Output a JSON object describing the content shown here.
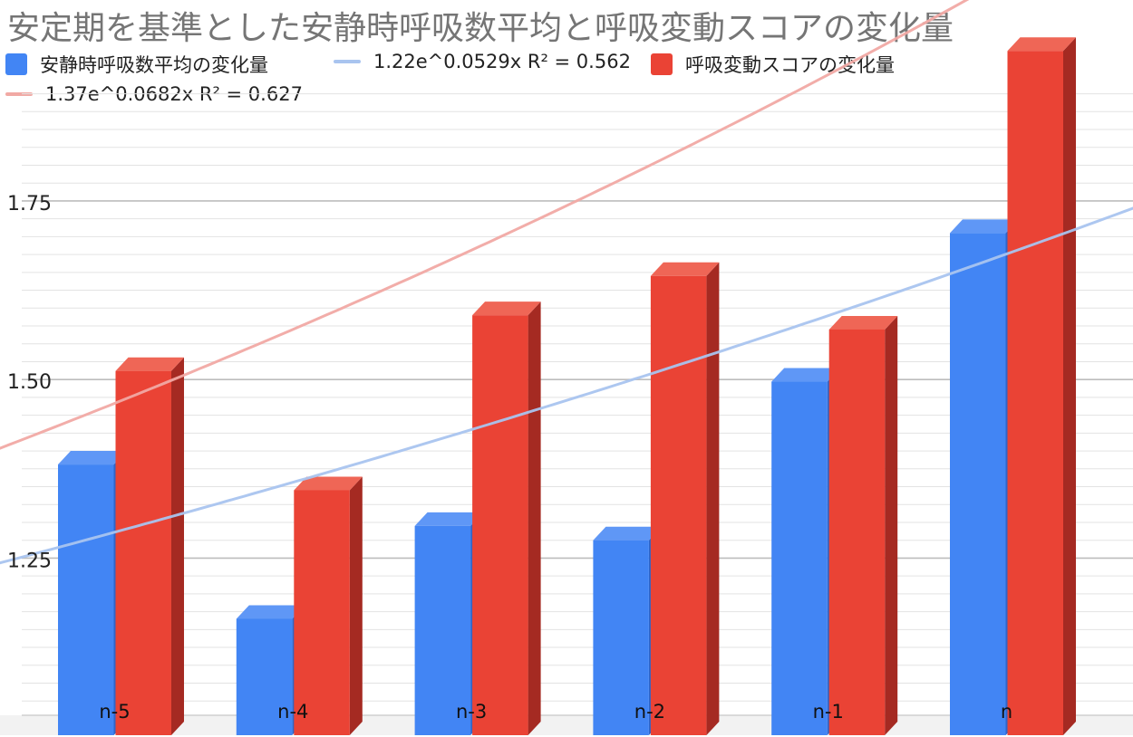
{
  "chart_data": {
    "type": "bar",
    "title": "安定期を基準とした安静時呼吸数平均と呼吸変動スコアの変化量",
    "categories": [
      "n-5",
      "n-4",
      "n-3",
      "n-2",
      "n-1",
      "n"
    ],
    "series": [
      {
        "name": "安静時呼吸数平均の変化量",
        "color": "#4285f4",
        "side_color": "#2f65c9",
        "top_color": "#5f97f6",
        "values": [
          1.381,
          1.165,
          1.295,
          1.275,
          1.497,
          1.705
        ]
      },
      {
        "name": "呼吸変動スコアの変化量",
        "color": "#ea4335",
        "side_color": "#a52a22",
        "top_color": "#ef6656",
        "values": [
          1.512,
          1.345,
          1.59,
          1.645,
          1.57,
          1.96
        ]
      }
    ],
    "trendlines": [
      {
        "label": "1.22e^0.0529x R² = 0.562",
        "color": "#a9c4ef",
        "a": 1.22,
        "b": 0.0529,
        "series": 0
      },
      {
        "label": "1.37e^0.0682x R² = 0.627",
        "color": "#f1a9a4",
        "a": 1.37,
        "b": 0.0682,
        "series": 1
      }
    ],
    "yticks": [
      "1.25",
      "1.50",
      "1.75"
    ],
    "ytick_values": [
      1.25,
      1.5,
      1.75
    ],
    "ylim": [
      1.03,
      2.06
    ],
    "grid": true,
    "legend_position": "top"
  }
}
